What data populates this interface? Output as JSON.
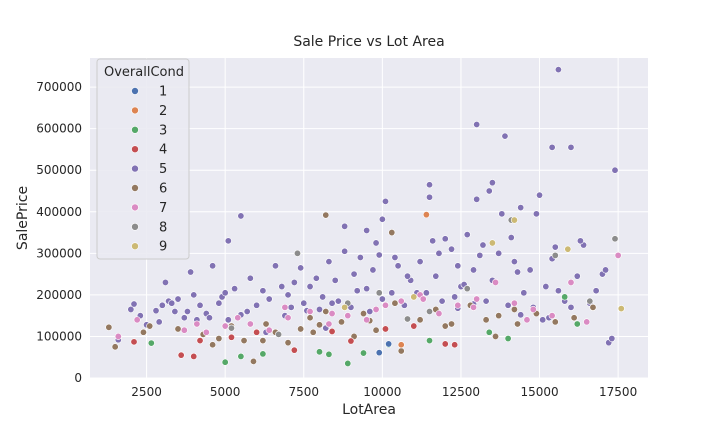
{
  "chart_data": {
    "type": "scatter",
    "title": "Sale Price vs Lot Area",
    "xlabel": "LotArea",
    "ylabel": "SalePrice",
    "xlim": [
      700,
      18450
    ],
    "ylim": [
      0,
      770000
    ],
    "xticks": [
      2500,
      5000,
      7500,
      10000,
      12500,
      15000,
      17500
    ],
    "xtick_labels": [
      "2500",
      "5000",
      "7500",
      "10000",
      "12500",
      "15000",
      "17500"
    ],
    "yticks": [
      0,
      100000,
      200000,
      300000,
      400000,
      500000,
      600000,
      700000
    ],
    "ytick_labels": [
      "0",
      "100000",
      "200000",
      "300000",
      "400000",
      "500000",
      "600000",
      "700000"
    ],
    "grid": true,
    "background": "#eaeaf2",
    "legend": {
      "title": "OverallCond",
      "placement": "top-left",
      "entries": [
        {
          "label": "1",
          "color": "#4c72b0"
        },
        {
          "label": "2",
          "color": "#dd8452"
        },
        {
          "label": "3",
          "color": "#55a868"
        },
        {
          "label": "4",
          "color": "#c44e52"
        },
        {
          "label": "5",
          "color": "#8172b3"
        },
        {
          "label": "6",
          "color": "#937860"
        },
        {
          "label": "7",
          "color": "#da8bc3"
        },
        {
          "label": "8",
          "color": "#8c8c8c"
        },
        {
          "label": "9",
          "color": "#ccb974"
        }
      ]
    },
    "series": [
      {
        "name": "1",
        "x": [
          9900,
          10200
        ],
        "y": [
          61000,
          82000
        ]
      },
      {
        "name": "2",
        "x": [
          11400,
          10600
        ],
        "y": [
          393000,
          80000
        ]
      },
      {
        "name": "3",
        "x": [
          5000,
          5500,
          6200,
          8000,
          8300,
          8900,
          9400,
          10200,
          11500,
          13400,
          14000,
          15800,
          16200,
          2650
        ],
        "y": [
          38000,
          52000,
          58000,
          63000,
          57000,
          35000,
          60000,
          80000,
          90000,
          110000,
          95000,
          195000,
          130000,
          84000
        ]
      },
      {
        "name": "4",
        "x": [
          2100,
          3600,
          4000,
          4200,
          5200,
          6000,
          7200,
          8400,
          9000,
          10100,
          11000,
          12000,
          12300
        ],
        "y": [
          87000,
          55000,
          52000,
          90000,
          98000,
          110000,
          67000,
          112000,
          89000,
          118000,
          125000,
          82000,
          80000
        ]
      },
      {
        "name": "5",
        "x": [
          1600,
          2000,
          2100,
          2300,
          2500,
          2800,
          3000,
          3100,
          3200,
          3500,
          3700,
          3900,
          4000,
          4200,
          4400,
          4600,
          4800,
          4900,
          5000,
          5100,
          5300,
          5500,
          5800,
          6000,
          6200,
          6400,
          6600,
          6800,
          7000,
          7200,
          7400,
          7500,
          7700,
          7900,
          8000,
          8100,
          8300,
          8500,
          8600,
          8800,
          9000,
          9100,
          9300,
          9500,
          9600,
          9800,
          10000,
          10100,
          10300,
          10500,
          10700,
          10900,
          11000,
          11200,
          11400,
          11500,
          11700,
          11900,
          12000,
          12200,
          12400,
          12500,
          12700,
          12900,
          13000,
          13200,
          13400,
          13500,
          13700,
          13900,
          14000,
          14200,
          14400,
          14500,
          14700,
          14900,
          15000,
          15200,
          15400,
          15500,
          15600,
          15800,
          16000,
          16200,
          16400,
          16600,
          16800,
          17000,
          17200,
          17400,
          5100,
          5500,
          8800,
          9500,
          10000,
          11500,
          12900,
          13500,
          13800,
          14100,
          15400,
          15600,
          16000,
          17300,
          17100,
          12400,
          13000,
          14400,
          10800,
          9900,
          8200,
          7100,
          6300,
          4100,
          3800,
          3300,
          2900,
          11800,
          12600,
          13300,
          14800,
          15100,
          16700,
          6900,
          7600,
          8400,
          9200,
          9700,
          10400,
          11100,
          11600,
          12300,
          13100,
          14300,
          15300,
          16300,
          5700,
          4500,
          3400
        ],
        "y": [
          92000,
          165000,
          178000,
          150000,
          128000,
          162000,
          175000,
          230000,
          185000,
          190000,
          145000,
          255000,
          200000,
          175000,
          155000,
          270000,
          180000,
          195000,
          205000,
          140000,
          215000,
          390000,
          240000,
          175000,
          210000,
          190000,
          270000,
          220000,
          200000,
          230000,
          265000,
          180000,
          220000,
          240000,
          165000,
          195000,
          280000,
          235000,
          185000,
          305000,
          170000,
          250000,
          290000,
          215000,
          160000,
          325000,
          190000,
          425000,
          205000,
          270000,
          175000,
          235000,
          195000,
          280000,
          205000,
          465000,
          245000,
          185000,
          335000,
          310000,
          270000,
          220000,
          345000,
          260000,
          610000,
          320000,
          450000,
          235000,
          300000,
          582000,
          175000,
          280000,
          410000,
          205000,
          260000,
          395000,
          440000,
          220000,
          555000,
          315000,
          742000,
          185000,
          555000,
          245000,
          320000,
          180000,
          210000,
          250000,
          85000,
          500000,
          330000,
          152000,
          365000,
          355000,
          382000,
          435000,
          178000,
          470000,
          395000,
          338000,
          287000,
          210000,
          170000,
          95000,
          260000,
          168000,
          430000,
          152000,
          245000,
          296000,
          120000,
          170000,
          110000,
          140000,
          160000,
          180000,
          135000,
          300000,
          225000,
          185000,
          170000,
          140000,
          170000,
          150000,
          162000,
          180000,
          210000,
          260000,
          290000,
          205000,
          330000,
          195000,
          295000,
          255000,
          145000,
          330000,
          160000,
          145000,
          160000
        ]
      },
      {
        "name": "6",
        "x": [
          1300,
          1500,
          2400,
          2600,
          3500,
          4300,
          4800,
          5200,
          5600,
          5900,
          6300,
          6600,
          7000,
          7400,
          7700,
          8000,
          8200,
          8700,
          9100,
          9400,
          9800,
          10300,
          10600,
          11200,
          11700,
          12200,
          12800,
          13300,
          13700,
          14300,
          14900,
          15500,
          16100,
          16700,
          8200,
          10400,
          4600,
          6200,
          7800,
          9600,
          12000,
          14200,
          13600
        ],
        "y": [
          122000,
          75000,
          110000,
          125000,
          118000,
          105000,
          95000,
          125000,
          90000,
          40000,
          130000,
          110000,
          85000,
          118000,
          145000,
          128000,
          392000,
          135000,
          100000,
          155000,
          115000,
          350000,
          65000,
          140000,
          165000,
          130000,
          175000,
          140000,
          150000,
          130000,
          155000,
          135000,
          145000,
          170000,
          160000,
          180000,
          80000,
          90000,
          110000,
          138000,
          125000,
          165000,
          100000
        ]
      },
      {
        "name": "7",
        "x": [
          1600,
          2200,
          3700,
          4400,
          5000,
          5800,
          6400,
          7000,
          7700,
          8300,
          8900,
          9500,
          10100,
          10600,
          11200,
          11800,
          12400,
          13000,
          13600,
          14200,
          14800,
          15400,
          16000,
          16500,
          17500,
          4100,
          5400,
          6900,
          8400,
          9800,
          11300,
          12900,
          14600
        ],
        "y": [
          100000,
          140000,
          115000,
          110000,
          125000,
          130000,
          115000,
          145000,
          160000,
          130000,
          150000,
          140000,
          175000,
          185000,
          200000,
          155000,
          175000,
          190000,
          230000,
          180000,
          165000,
          150000,
          230000,
          135000,
          295000,
          130000,
          145000,
          170000,
          155000,
          165000,
          190000,
          170000,
          140000
        ]
      },
      {
        "name": "8",
        "x": [
          5200,
          7300,
          8900,
          9900,
          11500,
          12700,
          14100,
          15500,
          16600,
          17400,
          6700,
          10800
        ],
        "y": [
          120000,
          300000,
          180000,
          205000,
          160000,
          215000,
          380000,
          295000,
          185000,
          335000,
          105000,
          142000
        ]
      },
      {
        "name": "9",
        "x": [
          8800,
          11000,
          13500,
          14200,
          15900,
          17600
        ],
        "y": [
          170000,
          195000,
          325000,
          380000,
          310000,
          167000
        ]
      }
    ]
  }
}
